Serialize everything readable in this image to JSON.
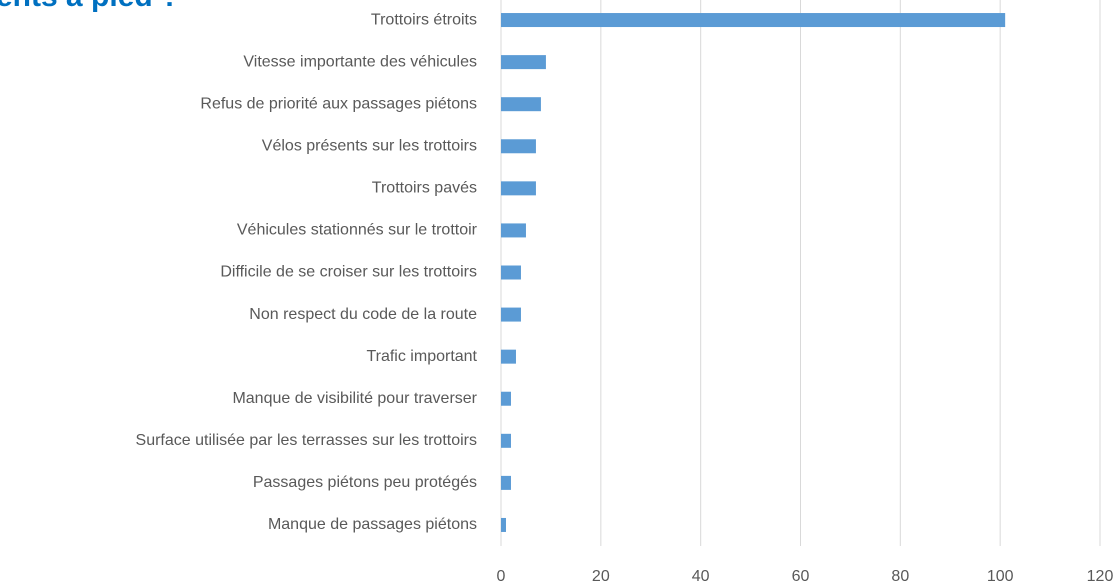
{
  "chart_data": {
    "type": "bar",
    "orientation": "horizontal",
    "title": "ents à pied ?",
    "categories": [
      "Trottoirs étroits",
      "Vitesse importante des véhicules",
      "Refus de priorité aux passages piétons",
      "Vélos présents sur les trottoirs",
      "Trottoirs pavés",
      "Véhicules stationnés sur le trottoir",
      "Difficile de se croiser sur les trottoirs",
      "Non respect du code de la route",
      "Trafic important",
      "Manque de visibilité pour traverser",
      "Surface utilisée par les terrasses sur les trottoirs",
      "Passages piétons peu protégés",
      "Manque de passages piétons"
    ],
    "values": [
      101,
      9,
      8,
      7,
      7,
      5,
      4,
      4,
      3,
      2,
      2,
      2,
      1
    ],
    "color": "#5b9bd5",
    "xlim": [
      0,
      120
    ],
    "xticks": [
      0,
      20,
      40,
      60,
      80,
      100,
      120
    ],
    "grid": true
  }
}
